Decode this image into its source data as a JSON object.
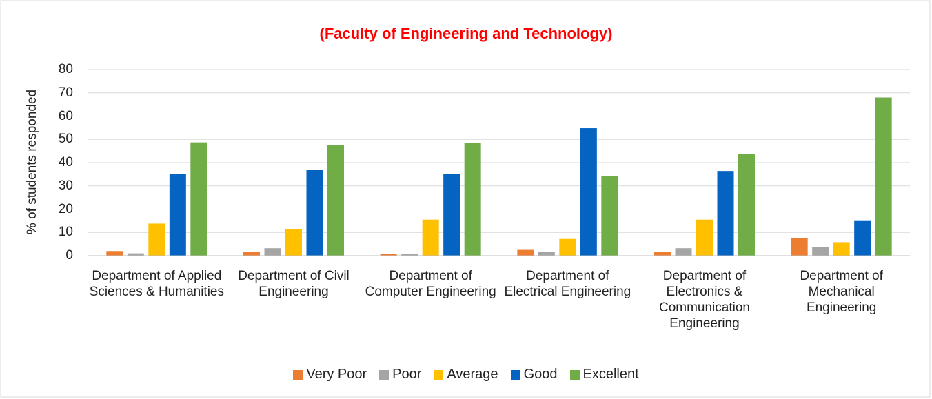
{
  "chart_data": {
    "type": "bar",
    "title": "(Faculty of Engineering and Technology)",
    "y_label": "% of students responded",
    "categories": [
      "Department of Applied Sciences & Humanities",
      "Department of Civil Engineering",
      "Department of Computer Engineering",
      "Department of Electrical Engineering",
      "Department of Electronics & Communication Engineering",
      "Department of Mechanical Engineering"
    ],
    "series": [
      {
        "name": "Very Poor",
        "color": "#ED7D31",
        "values": [
          2,
          1.5,
          0.7,
          2.5,
          1.5,
          7.7
        ]
      },
      {
        "name": "Poor",
        "color": "#A5A5A5",
        "values": [
          1,
          3.2,
          0.7,
          1.7,
          3.2,
          3.8
        ]
      },
      {
        "name": "Average",
        "color": "#FFC000",
        "values": [
          13.8,
          11.5,
          15.5,
          7.2,
          15.5,
          5.8
        ]
      },
      {
        "name": "Good",
        "color": "#0563C1",
        "values": [
          35,
          37,
          35,
          54.8,
          36.4,
          15.2
        ]
      },
      {
        "name": "Excellent",
        "color": "#70AD47",
        "values": [
          48.7,
          47.5,
          48.3,
          34.2,
          43.8,
          68
        ]
      }
    ],
    "ylim": [
      0,
      80
    ],
    "yticks": [
      0,
      10,
      20,
      30,
      40,
      50,
      60,
      70,
      80
    ],
    "grid": true,
    "legend": "bottom"
  }
}
